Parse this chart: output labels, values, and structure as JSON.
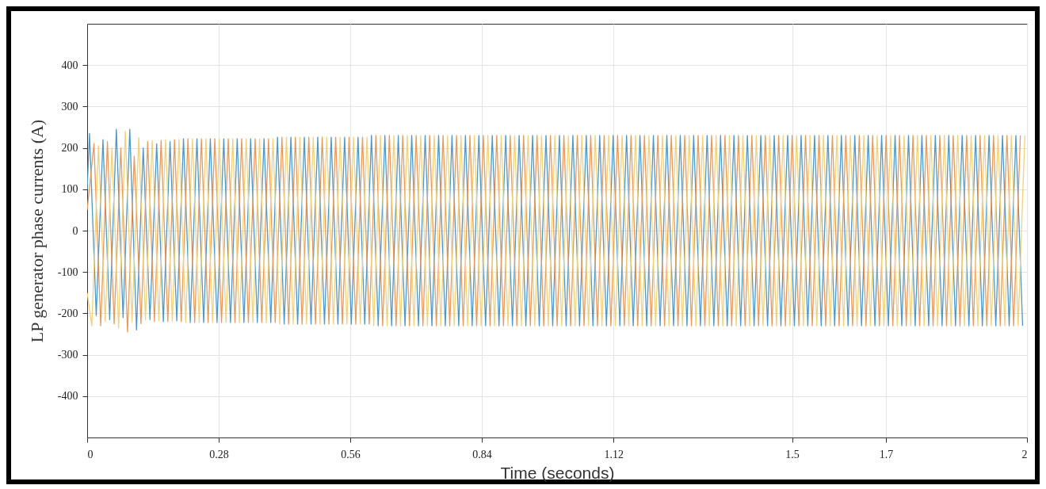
{
  "chart_data": {
    "type": "line",
    "xlabel": "Time (seconds)",
    "ylabel": "LP generator phase currents (A)",
    "xlim": [
      0,
      2
    ],
    "ylim": [
      -500,
      500
    ],
    "xticks": [
      0,
      0.28,
      0.56,
      0.84,
      1.12,
      1.5,
      1.7,
      2
    ],
    "yticks": [
      -400,
      -300,
      -200,
      -100,
      0,
      100,
      200,
      300,
      400
    ],
    "grid": true,
    "series": [
      {
        "color": "#4f97c4",
        "x": [
          0,
          0.005,
          0.0193,
          0.0336,
          0.0479,
          0.0621,
          0.0764,
          0.0907,
          0.105,
          0.1193,
          0.1336,
          0.1479,
          0.1621,
          0.1764,
          0.1907,
          0.205,
          0.2193,
          0.2336,
          0.2479,
          0.2621,
          0.2764,
          0.2907,
          0.305,
          0.3193,
          0.3336,
          0.3479,
          0.3621,
          0.3764,
          0.3907,
          0.405,
          0.4193,
          0.4336,
          0.4479,
          0.4621,
          0.4764,
          0.4907,
          0.505,
          0.5193,
          0.5336,
          0.5479,
          0.5621,
          0.5764,
          0.5907,
          0.605,
          0.6193,
          0.6336,
          0.6479,
          0.6621,
          0.6764,
          0.6907,
          0.705,
          0.7193,
          0.7336,
          0.7479,
          0.7621,
          0.7764,
          0.7907,
          0.805,
          0.8193,
          0.8336,
          0.8479,
          0.8621,
          0.8764,
          0.8907,
          0.905,
          0.9193,
          0.9336,
          0.9479,
          0.9621,
          0.9764,
          0.9907,
          1.005,
          1.0193,
          1.0336,
          1.0479,
          1.0621,
          1.0764,
          1.0907,
          1.105,
          1.1193,
          1.1336,
          1.1479,
          1.1621,
          1.1764,
          1.1907,
          1.205,
          1.2193,
          1.2336,
          1.2479,
          1.2621,
          1.2764,
          1.2907,
          1.305,
          1.3193,
          1.3336,
          1.3479,
          1.3621,
          1.3764,
          1.3907,
          1.405,
          1.4193,
          1.4336,
          1.4479,
          1.4621,
          1.4764,
          1.4907,
          1.505,
          1.5193,
          1.5336,
          1.5479,
          1.5621,
          1.5764,
          1.5907,
          1.605,
          1.6193,
          1.6336,
          1.6479,
          1.6621,
          1.6764,
          1.6907,
          1.705,
          1.7193,
          1.7336,
          1.7479,
          1.7621,
          1.7764,
          1.7907,
          1.805,
          1.8193,
          1.8336,
          1.8479,
          1.8621,
          1.8764,
          1.8907,
          1.905,
          1.9193,
          1.9336,
          1.9479,
          1.9621,
          1.9764,
          1.9907
        ],
        "values": [
          100,
          235,
          -205,
          220,
          -215,
          245,
          -210,
          245,
          -240,
          200,
          -215,
          210,
          -220,
          215,
          -218,
          222,
          -222,
          222,
          -222,
          222,
          -222,
          222,
          -222,
          222,
          -222,
          222,
          -222,
          222,
          -222,
          226,
          -226,
          226,
          -226,
          226,
          -226,
          226,
          -226,
          226,
          -226,
          226,
          -226,
          226,
          -226,
          230,
          -230,
          230,
          -230,
          230,
          -230,
          230,
          -230,
          230,
          -230,
          230,
          -230,
          230,
          -230,
          230,
          -230,
          230,
          -230,
          230,
          -230,
          230,
          -230,
          230,
          -230,
          230,
          -230,
          230,
          -230,
          230,
          -230,
          230,
          -230,
          230,
          -230,
          230,
          -230,
          230,
          -230,
          230,
          -230,
          230,
          -230,
          230,
          -230,
          230,
          -230,
          230,
          -230,
          230,
          -230,
          230,
          -230,
          230,
          -230,
          230,
          -230,
          230,
          -230,
          230,
          -230,
          230,
          -230,
          230,
          -230,
          230,
          -230,
          230,
          -230,
          230,
          -230,
          230,
          -230,
          230,
          -230,
          230,
          -230,
          230,
          -230,
          230,
          -230,
          230,
          -230,
          230,
          -230,
          230,
          -230,
          230,
          -230,
          230,
          -230,
          230,
          -230,
          230,
          -230,
          230,
          -230,
          230,
          -230
        ]
      },
      {
        "color": "#e69a5c",
        "x": [
          0,
          0.0145,
          0.0288,
          0.0431,
          0.0574,
          0.0716,
          0.0859,
          0.1002,
          0.1145,
          0.1288,
          0.1431,
          0.1574,
          0.1716,
          0.1859,
          0.2002,
          0.2145,
          0.2288,
          0.2431,
          0.2574,
          0.2716,
          0.2859,
          0.3002,
          0.3145,
          0.3288,
          0.3431,
          0.3574,
          0.3716,
          0.3859,
          0.4002,
          0.4145,
          0.4288,
          0.4431,
          0.4574,
          0.4716,
          0.4859,
          0.5002,
          0.5145,
          0.5288,
          0.5431,
          0.5574,
          0.5716,
          0.5859,
          0.6002,
          0.6145,
          0.6288,
          0.6431,
          0.6574,
          0.6716,
          0.6859,
          0.7002,
          0.7145,
          0.7288,
          0.7431,
          0.7574,
          0.7716,
          0.7859,
          0.8002,
          0.8145,
          0.8288,
          0.8431,
          0.8574,
          0.8716,
          0.8859,
          0.9002,
          0.9145,
          0.9288,
          0.9431,
          0.9574,
          0.9716,
          0.9859,
          1.0002,
          1.0145,
          1.0288,
          1.0431,
          1.0574,
          1.0716,
          1.0859,
          1.1002,
          1.1145,
          1.1288,
          1.1431,
          1.1574,
          1.1716,
          1.1859,
          1.2002,
          1.2145,
          1.2288,
          1.2431,
          1.2574,
          1.2716,
          1.2859,
          1.3002,
          1.3145,
          1.3288,
          1.3431,
          1.3574,
          1.3716,
          1.3859,
          1.4002,
          1.4145,
          1.4288,
          1.4431,
          1.4574,
          1.4716,
          1.4859,
          1.5002,
          1.5145,
          1.5288,
          1.5431,
          1.5574,
          1.5716,
          1.5859,
          1.6002,
          1.6145,
          1.6288,
          1.6431,
          1.6574,
          1.6716,
          1.6859,
          1.7002,
          1.7145,
          1.7288,
          1.7431,
          1.7574,
          1.7716,
          1.7859,
          1.8002,
          1.8145,
          1.8288,
          1.8431,
          1.8574,
          1.8716,
          1.8859,
          1.9002,
          1.9145,
          1.9288,
          1.9431,
          1.9574,
          1.9716,
          1.9859
        ],
        "values": [
          50,
          210,
          -230,
          215,
          -225,
          200,
          -245,
          180,
          -225,
          215,
          -220,
          218,
          -220,
          220,
          -220,
          222,
          -222,
          222,
          -222,
          222,
          -222,
          222,
          -222,
          222,
          -222,
          222,
          -222,
          222,
          -222,
          226,
          -226,
          226,
          -226,
          226,
          -226,
          226,
          -226,
          226,
          -226,
          226,
          -226,
          226,
          -226,
          230,
          -230,
          230,
          -230,
          230,
          -230,
          230,
          -230,
          230,
          -230,
          230,
          -230,
          230,
          -230,
          230,
          -230,
          230,
          -230,
          230,
          -230,
          230,
          -230,
          230,
          -230,
          230,
          -230,
          230,
          -230,
          230,
          -230,
          230,
          -230,
          230,
          -230,
          230,
          -230,
          230,
          -230,
          230,
          -230,
          230,
          -230,
          230,
          -230,
          230,
          -230,
          230,
          -230,
          230,
          -230,
          230,
          -230,
          230,
          -230,
          230,
          -230,
          230,
          -230,
          230,
          -230,
          230,
          -230,
          230,
          -230,
          230,
          -230,
          230,
          -230,
          230,
          -230,
          230,
          -230,
          230,
          -230,
          230,
          -230,
          230,
          -230,
          230,
          -230,
          230,
          -230,
          230,
          -230,
          230,
          -230,
          230,
          -230,
          230,
          -230,
          230,
          -230,
          230,
          -230,
          230,
          -230,
          230
        ]
      },
      {
        "color": "#efd27c",
        "x": [
          0,
          0.0098,
          0.0241,
          0.0384,
          0.0527,
          0.0669,
          0.0812,
          0.0955,
          0.1098,
          0.1241,
          0.1384,
          0.1527,
          0.1669,
          0.1812,
          0.1955,
          0.2098,
          0.2241,
          0.2384,
          0.2527,
          0.2669,
          0.2812,
          0.2955,
          0.3098,
          0.3241,
          0.3384,
          0.3527,
          0.3669,
          0.3812,
          0.3955,
          0.4098,
          0.4241,
          0.4384,
          0.4527,
          0.4669,
          0.4812,
          0.4955,
          0.5098,
          0.5241,
          0.5384,
          0.5527,
          0.5669,
          0.5812,
          0.5955,
          0.6098,
          0.6241,
          0.6384,
          0.6527,
          0.6669,
          0.6812,
          0.6955,
          0.7098,
          0.7241,
          0.7384,
          0.7527,
          0.7669,
          0.7812,
          0.7955,
          0.8098,
          0.8241,
          0.8384,
          0.8527,
          0.8669,
          0.8812,
          0.8955,
          0.9098,
          0.9241,
          0.9384,
          0.9527,
          0.9669,
          0.9812,
          0.9955,
          1.0098,
          1.0241,
          1.0384,
          1.0527,
          1.0669,
          1.0812,
          1.0955,
          1.1098,
          1.1241,
          1.1384,
          1.1527,
          1.1669,
          1.1812,
          1.1955,
          1.2098,
          1.2241,
          1.2384,
          1.2527,
          1.2669,
          1.2812,
          1.2955,
          1.3098,
          1.3241,
          1.3384,
          1.3527,
          1.3669,
          1.3812,
          1.3955,
          1.4098,
          1.4241,
          1.4384,
          1.4527,
          1.4669,
          1.4812,
          1.4955,
          1.5098,
          1.5241,
          1.5384,
          1.5527,
          1.5669,
          1.5812,
          1.5955,
          1.6098,
          1.6241,
          1.6384,
          1.6527,
          1.6669,
          1.6812,
          1.6955,
          1.7098,
          1.7241,
          1.7384,
          1.7527,
          1.7669,
          1.7812,
          1.7955,
          1.8098,
          1.8241,
          1.8384,
          1.8527,
          1.8669,
          1.8812,
          1.8955,
          1.9098,
          1.9241,
          1.9384,
          1.9527,
          1.9669,
          1.9812,
          1.9955
        ],
        "values": [
          -150,
          -230,
          205,
          -220,
          200,
          -235,
          240,
          -220,
          225,
          -215,
          218,
          -218,
          220,
          -220,
          220,
          -222,
          222,
          -222,
          222,
          -222,
          222,
          -222,
          222,
          -222,
          222,
          -222,
          222,
          -222,
          222,
          -226,
          226,
          -226,
          226,
          -226,
          226,
          -226,
          226,
          -226,
          226,
          -226,
          226,
          -226,
          226,
          -230,
          230,
          -230,
          230,
          -230,
          230,
          -230,
          230,
          -230,
          230,
          -230,
          230,
          -230,
          230,
          -230,
          230,
          -230,
          230,
          -230,
          230,
          -230,
          230,
          -230,
          230,
          -230,
          230,
          -230,
          230,
          -230,
          230,
          -230,
          230,
          -230,
          230,
          -230,
          230,
          -230,
          230,
          -230,
          230,
          -230,
          230,
          -230,
          230,
          -230,
          230,
          -230,
          230,
          -230,
          230,
          -230,
          230,
          -230,
          230,
          -230,
          230,
          -230,
          230,
          -230,
          230,
          -230,
          230,
          -230,
          230,
          -230,
          230,
          -230,
          230,
          -230,
          230,
          -230,
          230,
          -230,
          230,
          -230,
          230,
          -230,
          230,
          -230,
          230,
          -230,
          230,
          -230,
          230,
          -230,
          230,
          -230,
          230,
          -230,
          230,
          -230,
          230,
          -230,
          230,
          -230,
          230,
          -230,
          230
        ]
      }
    ]
  }
}
